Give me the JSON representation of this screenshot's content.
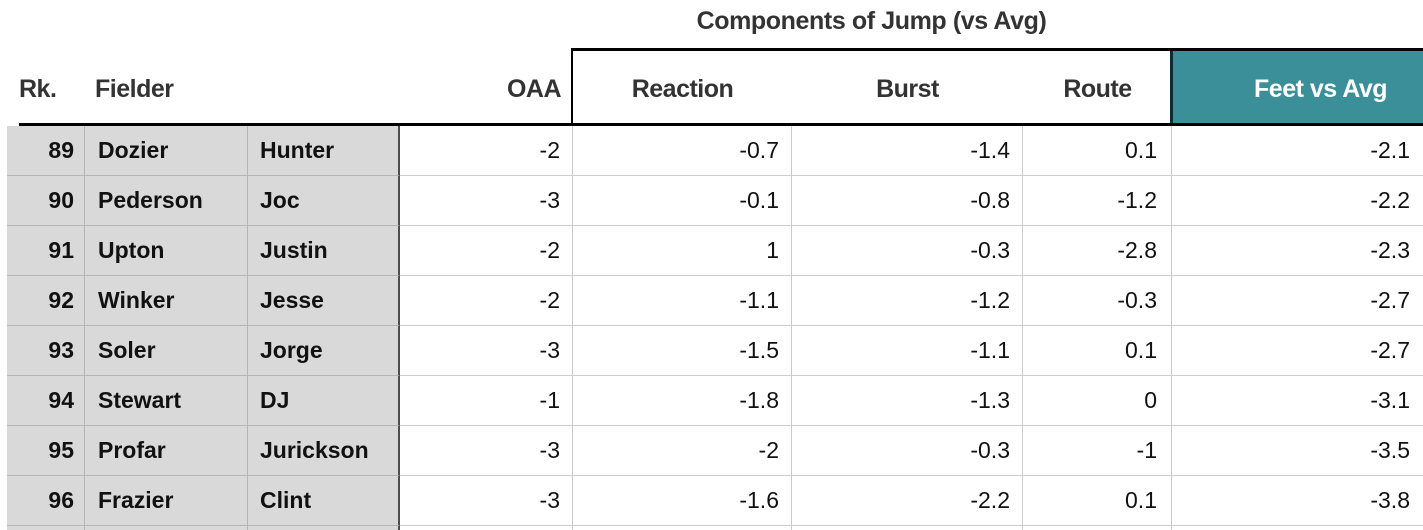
{
  "table": {
    "group_title": "Components of Jump (vs Avg)",
    "headers": {
      "rk": "Rk.",
      "fielder": "Fielder",
      "oaa": "OAA",
      "reaction": "Reaction",
      "burst": "Burst",
      "route": "Route",
      "feet": "Feet vs Avg"
    },
    "rows": [
      {
        "rk": "89",
        "last": "Dozier",
        "first": "Hunter",
        "oaa": "-2",
        "reaction": "-0.7",
        "burst": "-1.4",
        "route": "0.1",
        "feet": "-2.1"
      },
      {
        "rk": "90",
        "last": "Pederson",
        "first": "Joc",
        "oaa": "-3",
        "reaction": "-0.1",
        "burst": "-0.8",
        "route": "-1.2",
        "feet": "-2.2"
      },
      {
        "rk": "91",
        "last": "Upton",
        "first": "Justin",
        "oaa": "-2",
        "reaction": "1",
        "burst": "-0.3",
        "route": "-2.8",
        "feet": "-2.3"
      },
      {
        "rk": "92",
        "last": "Winker",
        "first": "Jesse",
        "oaa": "-2",
        "reaction": "-1.1",
        "burst": "-1.2",
        "route": "-0.3",
        "feet": "-2.7"
      },
      {
        "rk": "93",
        "last": "Soler",
        "first": "Jorge",
        "oaa": "-3",
        "reaction": "-1.5",
        "burst": "-1.1",
        "route": "0.1",
        "feet": "-2.7"
      },
      {
        "rk": "94",
        "last": "Stewart",
        "first": "DJ",
        "oaa": "-1",
        "reaction": "-1.8",
        "burst": "-1.3",
        "route": "0",
        "feet": "-3.1"
      },
      {
        "rk": "95",
        "last": "Profar",
        "first": "Jurickson",
        "oaa": "-3",
        "reaction": "-2",
        "burst": "-0.3",
        "route": "-1",
        "feet": "-3.5"
      },
      {
        "rk": "96",
        "last": "Frazier",
        "first": "Clint",
        "oaa": "-3",
        "reaction": "-1.6",
        "burst": "-2.2",
        "route": "0.1",
        "feet": "-3.8"
      }
    ]
  },
  "colors": {
    "accent_teal": "#3A8F99",
    "row_label_gray": "#D9D9D9",
    "header_text": "#333333"
  }
}
